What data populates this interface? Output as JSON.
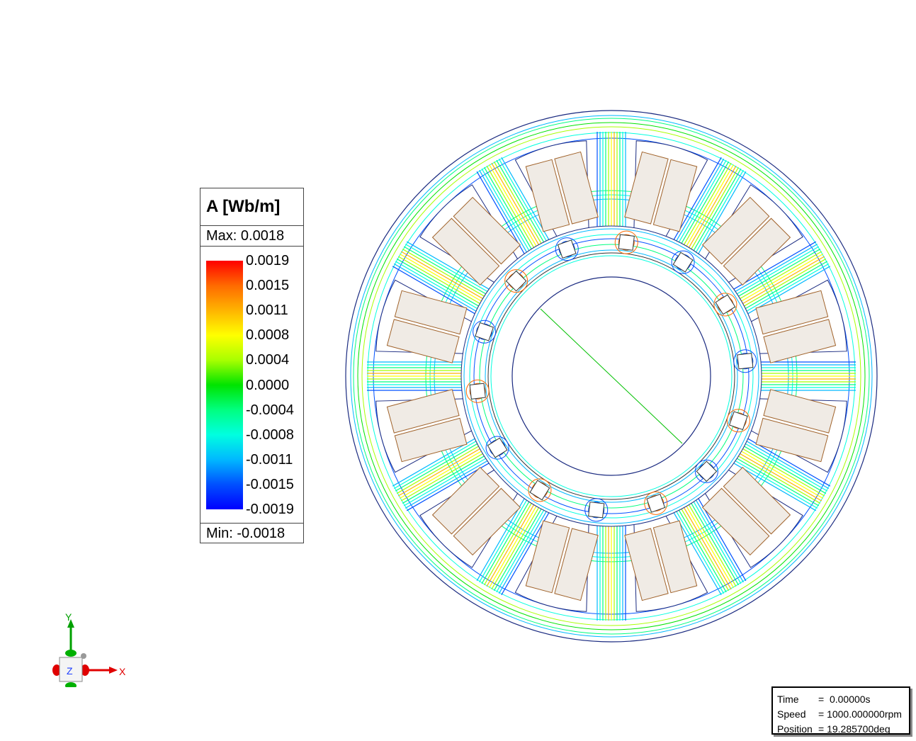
{
  "legend": {
    "title": "A [Wb/m]",
    "max_label": "Max: 0.0018",
    "min_label": "Min: -0.0018",
    "ticks": [
      "0.0019",
      "0.0015",
      "0.0011",
      "0.0008",
      "0.0004",
      "0.0000",
      "-0.0004",
      "-0.0008",
      "-0.0011",
      "-0.0015",
      "-0.0019"
    ],
    "colors": [
      "#ff0000",
      "#ff6a00",
      "#ffb400",
      "#ffff00",
      "#a8ff00",
      "#00e400",
      "#00ff80",
      "#00ffe0",
      "#00b8ff",
      "#0050ff",
      "#0000ff"
    ]
  },
  "status": {
    "time_label": "Time",
    "time_value": "=  0.00000s",
    "speed_label": "Speed",
    "speed_value": "= 1000.000000rpm",
    "position_label": "Position",
    "position_value": "= 19.285700deg"
  },
  "axes": {
    "x_label": "X",
    "y_label": "Y",
    "z_label": "Z",
    "x_color": "#e00000",
    "y_color": "#00a000",
    "z_color": "#2040ff"
  },
  "motor": {
    "stator_slots": 12,
    "rotor_magnets": 14
  }
}
